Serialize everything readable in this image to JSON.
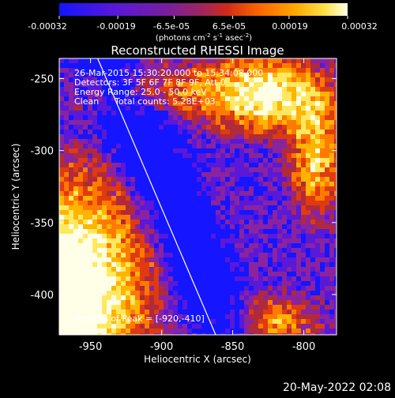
{
  "colorbar": {
    "tick_labels": [
      "-0.00032",
      "-0.00019",
      "-6.5e-05",
      "6.5e-05",
      "0.00019",
      "0.00032"
    ],
    "tick_values": [
      -0.00032,
      -0.00019,
      -6.5e-05,
      6.5e-05,
      0.00019,
      0.00032
    ],
    "range": [
      -0.00032,
      0.00032
    ],
    "units": "(photons cm",
    "units_sup1": "-2",
    "units_mid": " s",
    "units_sup2": "-1",
    "units_mid2": " asec",
    "units_sup3": "-2",
    "units_end": ")",
    "colors": [
      "#1515ff",
      "#5a18d8",
      "#8a23a0",
      "#b02a3a",
      "#e03a10",
      "#ff7a00",
      "#ffb400",
      "#ffe860",
      "#ffffe8"
    ]
  },
  "chart_data": {
    "type": "heatmap",
    "title": "Reconstructed RHESSI Image",
    "xlabel": "Heliocentric X (arcsec)",
    "ylabel": "Heliocentric Y (arcsec)",
    "xlim": [
      -972,
      -777
    ],
    "ylim": [
      -428,
      -236
    ],
    "x_ticks": [
      -950,
      -900,
      -850,
      -800
    ],
    "x_tick_labels": [
      "-950",
      "-900",
      "-850",
      "-800"
    ],
    "y_ticks": [
      -250,
      -300,
      -350,
      -400
    ],
    "y_tick_labels": [
      "-250",
      "-300",
      "-350",
      "-400"
    ],
    "limb_line": [
      [
        -945,
        -236
      ],
      [
        -862,
        -428
      ]
    ],
    "peak": [
      -920,
      -410
    ],
    "annotations": {
      "time": "26-Mar-2015 15:30:20.000 to 15:34:08.000",
      "detectors": "Detectors: 3F 5F 6F 7F 8F 9F, Att 0",
      "energy": "Energy Range: 25.0 - 50.0 keV",
      "clean": "Clean",
      "total_counts": "Total counts: 5.28E+03",
      "peak": "Position of Peak = [-920,-410]"
    }
  },
  "footer": {
    "date": "20-May-2022 02:08"
  }
}
